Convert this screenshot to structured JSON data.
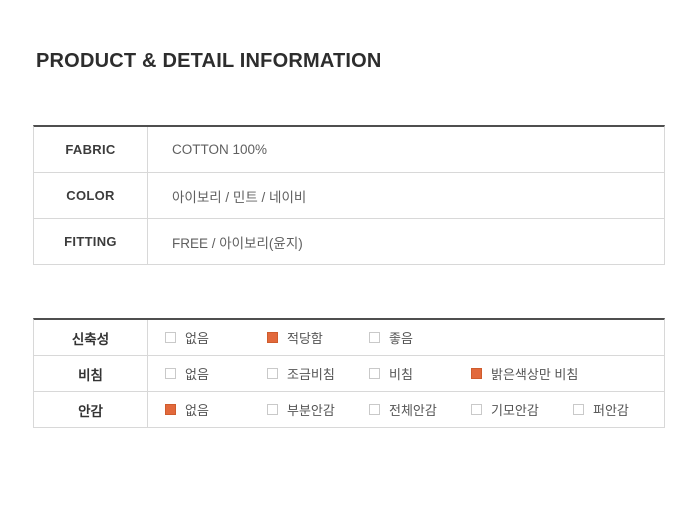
{
  "page": {
    "title": "PRODUCT & DETAIL INFORMATION"
  },
  "colors": {
    "accent_checked": "#e2693c",
    "border_dark": "#4f4f4f",
    "border_light": "#d8d8d8"
  },
  "info_table": {
    "rows": [
      {
        "label": "FABRIC",
        "value": "COTTON 100%"
      },
      {
        "label": "COLOR",
        "value": "아이보리 / 민트 / 네이비"
      },
      {
        "label": "FITTING",
        "value": "FREE / 아이보리(윤지)"
      }
    ]
  },
  "detail_table": {
    "rows": [
      {
        "label": "신축성",
        "options": [
          {
            "label": "없음",
            "checked": false
          },
          {
            "label": "적당함",
            "checked": true
          },
          {
            "label": "좋음",
            "checked": false
          }
        ]
      },
      {
        "label": "비침",
        "options": [
          {
            "label": "없음",
            "checked": false
          },
          {
            "label": "조금비침",
            "checked": false
          },
          {
            "label": "비침",
            "checked": false
          },
          {
            "label": "밝은색상만 비침",
            "checked": true
          }
        ]
      },
      {
        "label": "안감",
        "options": [
          {
            "label": "없음",
            "checked": true
          },
          {
            "label": "부분안감",
            "checked": false
          },
          {
            "label": "전체안감",
            "checked": false
          },
          {
            "label": "기모안감",
            "checked": false
          },
          {
            "label": "퍼안감",
            "checked": false
          }
        ]
      }
    ]
  }
}
